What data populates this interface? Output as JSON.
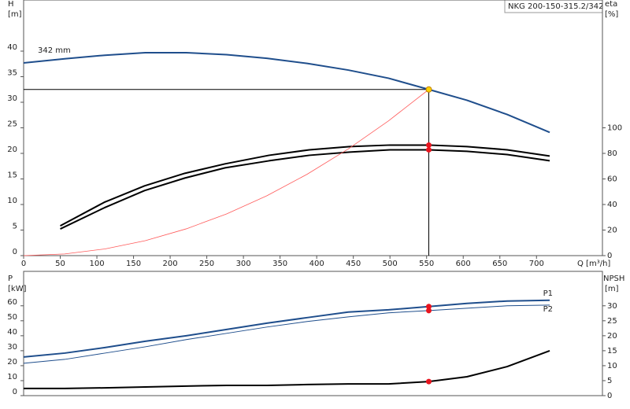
{
  "chart_data": [
    {
      "type": "line",
      "title": "NKG 200-150-315.2/342",
      "xlabel": "Q [m³/h]",
      "ylabel": "H",
      "ylabel_unit": "[m]",
      "y2label": "eta",
      "y2label_unit": "[%]",
      "xlim": [
        0,
        790
      ],
      "xticks": [
        0,
        50,
        100,
        150,
        200,
        250,
        300,
        350,
        400,
        450,
        500,
        550,
        600,
        650,
        700
      ],
      "ylim": [
        0,
        50
      ],
      "yticks": [
        0,
        5,
        10,
        15,
        20,
        25,
        30,
        35,
        40
      ],
      "y2lim": [
        0,
        200
      ],
      "y2ticks": [
        0,
        20,
        40,
        60,
        80,
        100
      ],
      "series": [
        {
          "name": "342 mm",
          "color": "#1f4e8c",
          "x": [
            0,
            56,
            111,
            166,
            222,
            277,
            332,
            387,
            443,
            498,
            553,
            605,
            660,
            718
          ],
          "values": [
            37.7,
            38.5,
            39.2,
            39.7,
            39.7,
            39.3,
            38.6,
            37.6,
            36.3,
            34.7,
            32.5,
            30.4,
            27.6,
            24.1
          ]
        },
        {
          "color": "#000000",
          "axis": "y2",
          "x": [
            50,
            110,
            165,
            220,
            275,
            335,
            390,
            445,
            500,
            553,
            605,
            660,
            718
          ],
          "values": [
            23.3,
            41.7,
            54.6,
            64.4,
            71.8,
            78.5,
            82.8,
            85.3,
            86.5,
            86.5,
            85.3,
            82.8,
            77.9
          ],
          "markers": [
            {
              "x": 553,
              "y": 86.5
            }
          ]
        },
        {
          "color": "#000000",
          "axis": "y2",
          "x": [
            50,
            110,
            165,
            220,
            275,
            335,
            390,
            445,
            500,
            553,
            605,
            660,
            718
          ],
          "values": [
            20.9,
            37.4,
            50.9,
            60.7,
            68.7,
            74.2,
            78.5,
            81,
            82.8,
            82.8,
            81.6,
            79.1,
            74.2
          ],
          "markers": [
            {
              "x": 553,
              "y": 82.8
            }
          ]
        },
        {
          "color": "#ff5a5a",
          "x": [
            0,
            56,
            111,
            166,
            222,
            277,
            332,
            387,
            443,
            498,
            553
          ],
          "values": [
            0,
            0.33,
            1.31,
            2.93,
            5.24,
            8.15,
            11.71,
            15.92,
            20.86,
            26.36,
            32.5
          ]
        }
      ],
      "operating_point": {
        "x": 553,
        "y": 32.5,
        "color": "#ffd200"
      }
    },
    {
      "type": "line",
      "ylabel": "P",
      "ylabel_unit": "[kW]",
      "y2label": "NPSH",
      "y2label_unit": "[m]",
      "xlim": [
        0,
        790
      ],
      "ylim": [
        0,
        83
      ],
      "yticks": [
        0,
        10,
        20,
        30,
        40,
        50,
        60
      ],
      "y2lim": [
        0,
        41.5
      ],
      "y2ticks": [
        0,
        5,
        10,
        15,
        20,
        25,
        30
      ],
      "series": [
        {
          "name": "P1",
          "color": "#1f4e8c",
          "x": [
            0,
            56,
            111,
            166,
            222,
            277,
            332,
            387,
            443,
            498,
            553,
            605,
            660,
            718
          ],
          "values": [
            25.8,
            28.4,
            32.1,
            36.3,
            40,
            44.2,
            48.4,
            52.1,
            55.8,
            57.3,
            59.5,
            61.6,
            63.2,
            63.7
          ],
          "markers": [
            {
              "x": 553,
              "y": 59.5
            }
          ]
        },
        {
          "name": "P2",
          "color": "#1f4e8c",
          "x": [
            0,
            56,
            111,
            166,
            222,
            277,
            332,
            387,
            443,
            498,
            553,
            605,
            660,
            718
          ],
          "values": [
            21.6,
            24.2,
            28.4,
            32.6,
            37.4,
            41.6,
            45.8,
            49.5,
            52.6,
            55.3,
            56.8,
            58.4,
            60,
            60.5
          ],
          "markers": [
            {
              "x": 553,
              "y": 56.8
            }
          ]
        },
        {
          "color": "#000000",
          "axis": "y2",
          "x": [
            0,
            56,
            111,
            166,
            222,
            277,
            332,
            387,
            443,
            498,
            553,
            605,
            660,
            718
          ],
          "values": [
            2.4,
            2.4,
            2.6,
            2.9,
            3.2,
            3.4,
            3.4,
            3.7,
            3.9,
            3.9,
            4.7,
            6.3,
            9.7,
            15
          ],
          "markers": [
            {
              "x": 553,
              "y": 4.7
            }
          ]
        }
      ]
    }
  ]
}
